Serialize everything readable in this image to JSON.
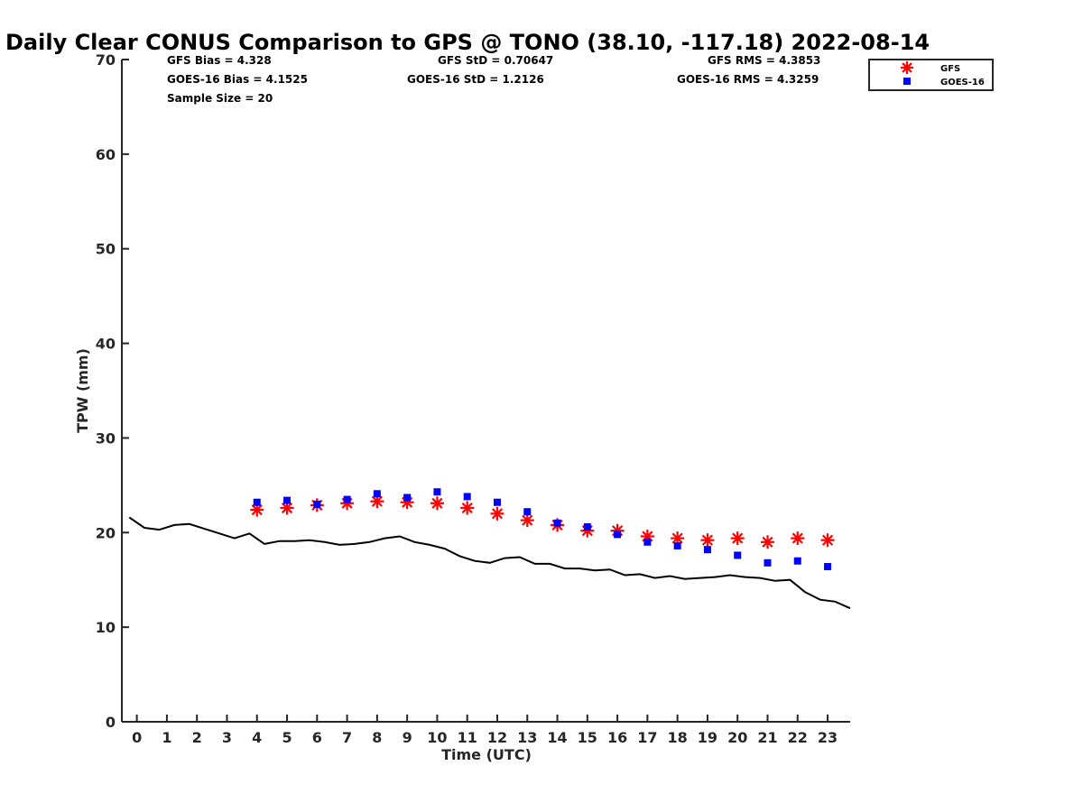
{
  "chart_data": {
    "type": "scatter",
    "title": "Daily Clear CONUS Comparison to GPS @ TONO (38.10, -117.18) 2022-08-14",
    "xlabel": "Time (UTC)",
    "ylabel": "TPW (mm)",
    "xlim": [
      -0.5,
      23.75
    ],
    "ylim": [
      0,
      70
    ],
    "x_ticks": [
      0,
      1,
      2,
      3,
      4,
      5,
      6,
      7,
      8,
      9,
      10,
      11,
      12,
      13,
      14,
      15,
      16,
      17,
      18,
      19,
      20,
      21,
      22,
      23
    ],
    "y_ticks": [
      0,
      10,
      20,
      30,
      40,
      50,
      60,
      70
    ],
    "grid": false,
    "legend_position": "top-right",
    "stats": [
      {
        "text": "GFS Bias = 4.328"
      },
      {
        "text": "GFS StD = 0.70647"
      },
      {
        "text": "GFS RMS = 4.3853"
      },
      {
        "text": "GOES-16 Bias = 4.1525"
      },
      {
        "text": "GOES-16 StD = 1.2126"
      },
      {
        "text": "GOES-16 RMS = 4.3259"
      },
      {
        "text": "Sample Size = 20"
      }
    ],
    "series": [
      {
        "name": "GFS",
        "marker": "asterisk",
        "color": "#ff0000",
        "x": [
          4,
          5,
          6,
          7,
          8,
          9,
          10,
          11,
          12,
          13,
          14,
          15,
          16,
          17,
          18,
          19,
          20,
          21,
          22,
          23
        ],
        "values": [
          22.4,
          22.6,
          22.9,
          23.1,
          23.3,
          23.2,
          23.1,
          22.6,
          22.0,
          21.3,
          20.8,
          20.2,
          20.2,
          19.6,
          19.4,
          19.2,
          19.4,
          19.0,
          19.4,
          19.2
        ]
      },
      {
        "name": "GOES-16",
        "marker": "square",
        "color": "#0000ff",
        "x": [
          4,
          5,
          6,
          7,
          8,
          9,
          10,
          11,
          12,
          13,
          14,
          15,
          16,
          17,
          18,
          19,
          20,
          21,
          22,
          23
        ],
        "values": [
          23.2,
          23.4,
          23.0,
          23.5,
          24.1,
          23.7,
          24.3,
          23.8,
          23.2,
          22.2,
          21.0,
          20.6,
          19.8,
          19.0,
          18.6,
          18.2,
          17.6,
          16.8,
          17.0,
          16.4
        ]
      },
      {
        "marker": "line",
        "color": "#000000",
        "x": [
          -0.25,
          0.25,
          0.75,
          1.25,
          1.75,
          2.25,
          2.75,
          3.25,
          3.75,
          4.25,
          4.75,
          5.25,
          5.75,
          6.25,
          6.75,
          7.25,
          7.75,
          8.25,
          8.75,
          9.25,
          9.75,
          10.25,
          10.75,
          11.25,
          11.75,
          12.25,
          12.75,
          13.25,
          13.75,
          14.25,
          14.75,
          15.25,
          15.75,
          16.25,
          16.75,
          17.25,
          17.75,
          18.25,
          18.75,
          19.25,
          19.75,
          20.25,
          20.75,
          21.25,
          21.75,
          22.25,
          22.75,
          23.25,
          23.75
        ],
        "values": [
          21.6,
          20.5,
          20.3,
          20.8,
          20.9,
          20.4,
          19.9,
          19.4,
          19.9,
          18.8,
          19.1,
          19.1,
          19.2,
          19.0,
          18.7,
          18.8,
          19.0,
          19.4,
          19.6,
          19.0,
          18.7,
          18.3,
          17.5,
          17.0,
          16.8,
          17.3,
          17.4,
          16.7,
          16.7,
          16.2,
          16.2,
          16.0,
          16.1,
          15.5,
          15.6,
          15.2,
          15.4,
          15.1,
          15.2,
          15.3,
          15.5,
          15.3,
          15.2,
          14.9,
          15.0,
          13.7,
          12.9,
          12.7,
          12.0
        ]
      }
    ]
  }
}
